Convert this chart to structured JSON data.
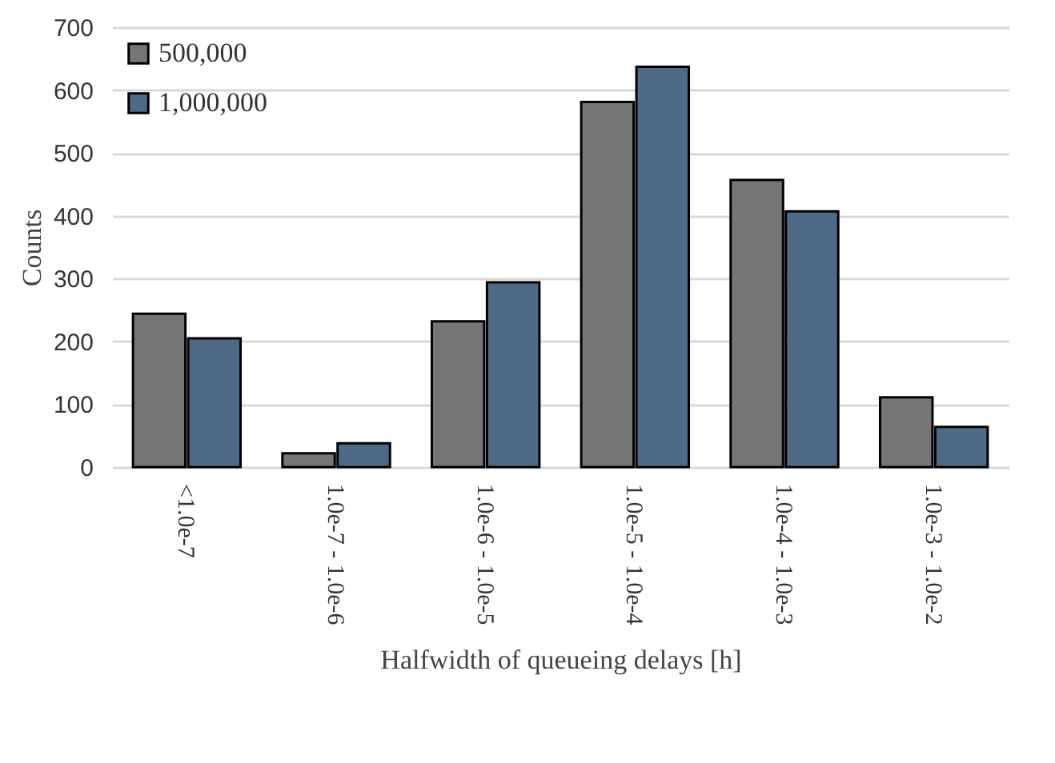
{
  "chart_data": {
    "type": "bar",
    "xlabel": "Halfwidth of queueing delays [h]",
    "ylabel": "Counts",
    "categories": [
      "<1.0e-7",
      "1.0e-7 - 1.0e-6",
      "1.0e-6 - 1.0e-5",
      "1.0e-5 - 1.0e-4",
      "1.0e-4 - 1.0e-3",
      "1.0e-3 - 1.0e-2"
    ],
    "series": [
      {
        "name": "500,000",
        "color": "#767676",
        "values": [
          244,
          22,
          232,
          581,
          457,
          111
        ]
      },
      {
        "name": "1,000,000",
        "color": "#4f6a87",
        "values": [
          205,
          38,
          294,
          637,
          407,
          64
        ]
      }
    ],
    "ylim": [
      0,
      700
    ],
    "yticks": [
      0,
      100,
      200,
      300,
      400,
      500,
      600,
      700
    ],
    "grid": "y",
    "legend": "top left"
  }
}
